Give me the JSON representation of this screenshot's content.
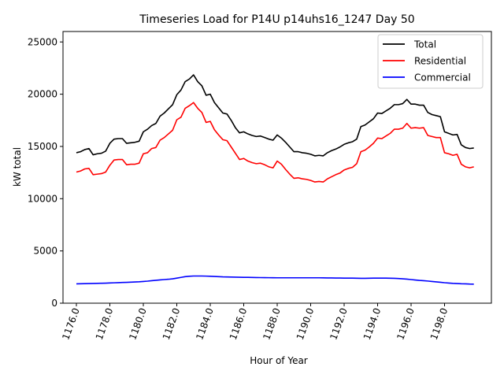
{
  "chart_data": {
    "type": "line",
    "title": "Timeseries Load for P14U p14uhs16_1247  Day 50",
    "xlabel": "Hour of Year",
    "ylabel": "kW total",
    "xlim": [
      1175.2,
      1200.8
    ],
    "ylim": [
      0,
      26000
    ],
    "xticks": [
      1176,
      1178,
      1180,
      1182,
      1184,
      1186,
      1188,
      1190,
      1192,
      1194,
      1196,
      1198
    ],
    "xtick_labels": [
      "1176.0",
      "1178.0",
      "1180.0",
      "1182.0",
      "1184.0",
      "1186.0",
      "1188.0",
      "1190.0",
      "1192.0",
      "1194.0",
      "1196.0",
      "1198.0"
    ],
    "yticks": [
      0,
      5000,
      10000,
      15000,
      20000,
      25000
    ],
    "ytick_labels": [
      "0",
      "5000",
      "10000",
      "15000",
      "20000",
      "25000"
    ],
    "legend_position": "top-right",
    "x_start": 1176,
    "x_step": 0.25,
    "series": [
      {
        "name": "Total",
        "color": "#000000",
        "values": [
          14400,
          14500,
          14700,
          14800,
          14200,
          14300,
          14350,
          14550,
          15300,
          15700,
          15750,
          15750,
          15300,
          15350,
          15400,
          15500,
          16400,
          16650,
          17000,
          17200,
          17900,
          18200,
          18600,
          19000,
          19950,
          20400,
          21200,
          21450,
          21850,
          21200,
          20800,
          19900,
          20000,
          19200,
          18700,
          18200,
          18100,
          17500,
          16800,
          16300,
          16400,
          16200,
          16050,
          15950,
          16000,
          15850,
          15700,
          15600,
          16100,
          15800,
          15400,
          14950,
          14500,
          14500,
          14400,
          14350,
          14250,
          14100,
          14150,
          14100,
          14400,
          14600,
          14750,
          14950,
          15200,
          15350,
          15450,
          15700,
          16900,
          17050,
          17350,
          17650,
          18200,
          18150,
          18400,
          18650,
          19000,
          19000,
          19100,
          19500,
          19050,
          19050,
          18950,
          18950,
          18250,
          18050,
          17950,
          17850,
          16400,
          16250,
          16100,
          16150,
          15150,
          14900,
          14800,
          14850
        ]
      },
      {
        "name": "Residential",
        "color": "#ff0000",
        "values": [
          12550,
          12650,
          12850,
          12900,
          12300,
          12350,
          12400,
          12550,
          13200,
          13700,
          13750,
          13750,
          13250,
          13300,
          13300,
          13400,
          14300,
          14400,
          14800,
          14900,
          15600,
          15850,
          16200,
          16550,
          17550,
          17800,
          18650,
          18900,
          19200,
          18650,
          18250,
          17300,
          17400,
          16600,
          16100,
          15650,
          15550,
          14950,
          14350,
          13750,
          13850,
          13600,
          13450,
          13350,
          13400,
          13250,
          13050,
          12950,
          13600,
          13300,
          12800,
          12350,
          11950,
          12000,
          11900,
          11850,
          11750,
          11600,
          11650,
          11600,
          11900,
          12100,
          12300,
          12450,
          12750,
          12900,
          13000,
          13350,
          14500,
          14650,
          14950,
          15300,
          15800,
          15750,
          16000,
          16250,
          16650,
          16650,
          16750,
          17200,
          16750,
          16800,
          16750,
          16800,
          16050,
          15950,
          15850,
          15850,
          14400,
          14300,
          14150,
          14250,
          13300,
          13050,
          12950,
          13050
        ]
      },
      {
        "name": "Commercial",
        "color": "#0000ff",
        "values": [
          1850,
          1860,
          1870,
          1880,
          1890,
          1900,
          1910,
          1920,
          1935,
          1950,
          1965,
          1980,
          1995,
          2010,
          2030,
          2050,
          2080,
          2110,
          2150,
          2190,
          2230,
          2260,
          2290,
          2330,
          2400,
          2470,
          2540,
          2580,
          2600,
          2600,
          2600,
          2590,
          2580,
          2560,
          2540,
          2520,
          2510,
          2500,
          2490,
          2480,
          2470,
          2470,
          2460,
          2455,
          2450,
          2445,
          2440,
          2435,
          2430,
          2430,
          2430,
          2430,
          2430,
          2430,
          2430,
          2430,
          2430,
          2430,
          2430,
          2425,
          2420,
          2415,
          2410,
          2405,
          2400,
          2400,
          2400,
          2390,
          2380,
          2380,
          2390,
          2400,
          2400,
          2400,
          2400,
          2390,
          2380,
          2360,
          2330,
          2300,
          2260,
          2220,
          2180,
          2150,
          2120,
          2080,
          2040,
          2000,
          1960,
          1930,
          1900,
          1880,
          1860,
          1850,
          1830,
          1820
        ]
      }
    ]
  }
}
